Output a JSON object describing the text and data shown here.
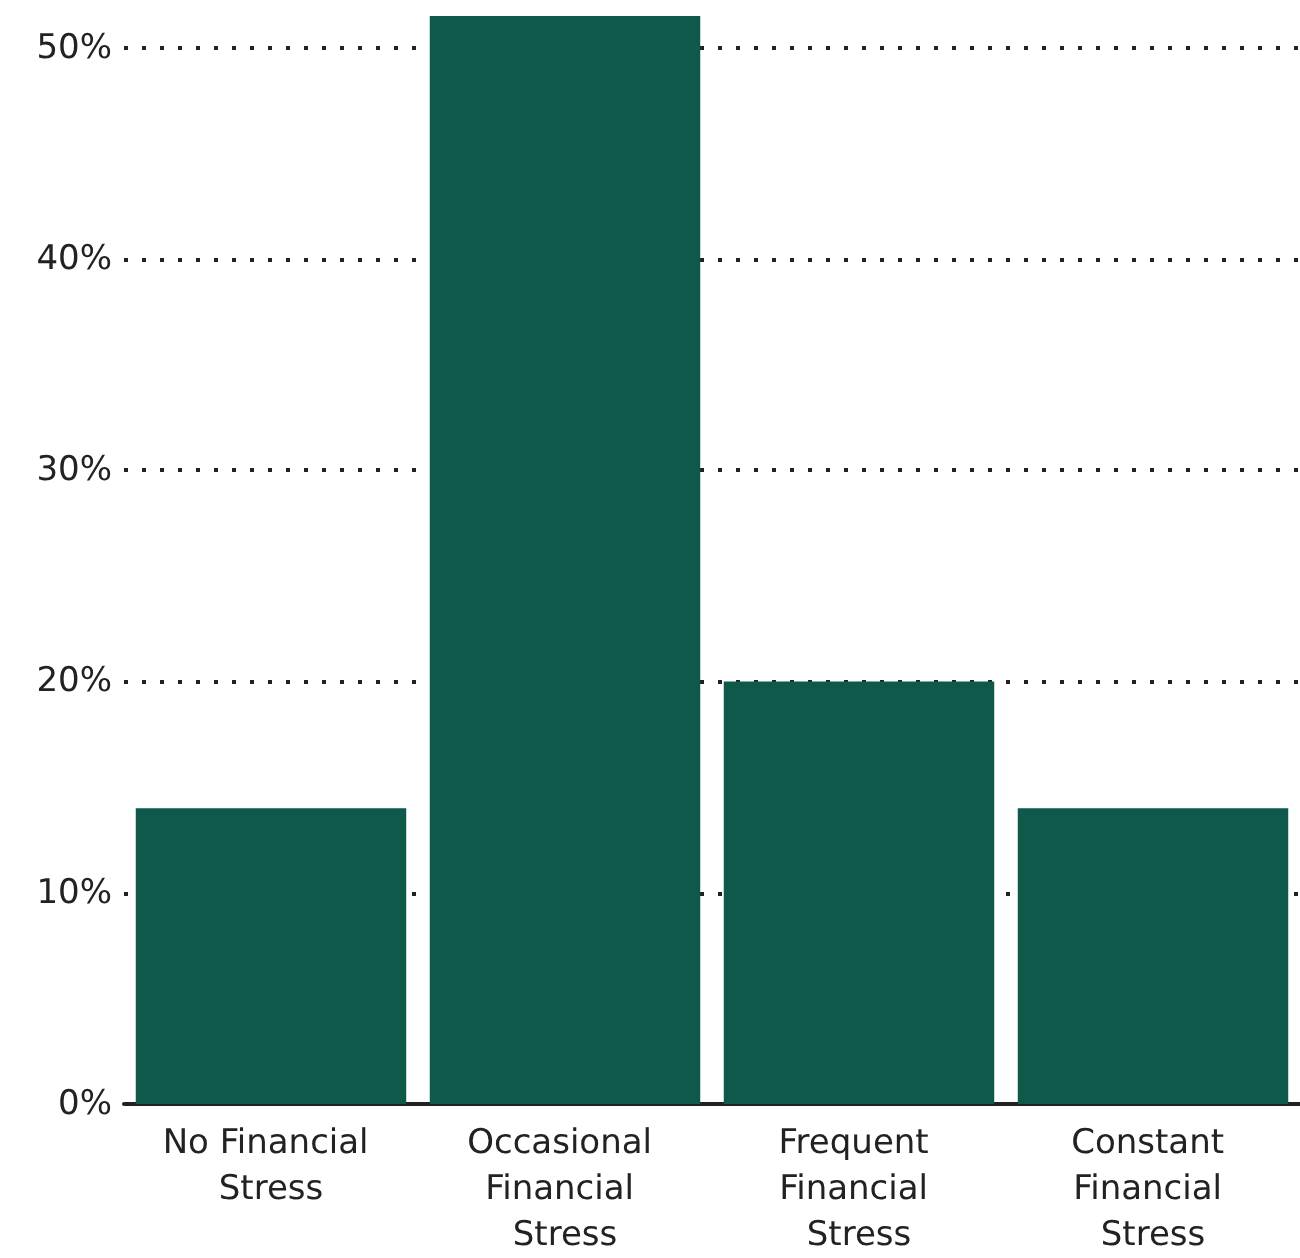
{
  "chart_data": {
    "type": "bar",
    "categories": [
      "No Financial Stress",
      "Occasional Financial Stress",
      "Frequent Financial Stress",
      "Constant Financial Stress"
    ],
    "values": [
      14,
      51.5,
      20,
      14
    ],
    "color": "#0e594a",
    "ylim": [
      0,
      51.5
    ],
    "yticks": [
      {
        "value": 0,
        "label": "0%"
      },
      {
        "value": 10,
        "label": "10%"
      },
      {
        "value": 20,
        "label": "20%"
      },
      {
        "value": 30,
        "label": "30%"
      },
      {
        "value": 40,
        "label": "40%"
      },
      {
        "value": 50,
        "label": "50%"
      }
    ],
    "grid": "y",
    "line_style": "dotted"
  }
}
